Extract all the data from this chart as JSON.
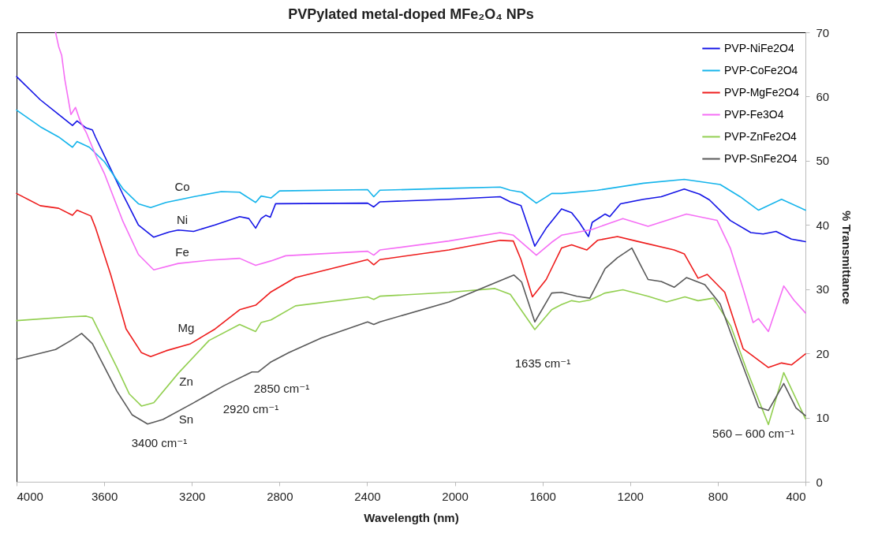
{
  "chart_data": {
    "type": "line",
    "title": "PVPylated metal-doped MFe₂O₄ NPs",
    "xlabel": "Wavelength (nm)",
    "ylabel": "% Transmittance",
    "xlim": [
      4000,
      400
    ],
    "xticks": [
      4000,
      3600,
      3200,
      2800,
      2400,
      2000,
      1600,
      1200,
      800,
      400
    ],
    "ylim": [
      0,
      70
    ],
    "yticks": [
      0,
      10,
      20,
      30,
      40,
      50,
      60,
      70
    ],
    "legend": "top right",
    "marker": "none",
    "line_style": "solid",
    "series": [
      {
        "name": "PVP-NiFe2O4",
        "color": "#1414e6",
        "x": [
          4000,
          3892,
          3808,
          3745,
          3724,
          3682,
          3654,
          3640,
          3598,
          3514,
          3444,
          3374,
          3304,
          3262,
          3192,
          3094,
          2982,
          2940,
          2909,
          2884,
          2863,
          2842,
          2818,
          2398,
          2370,
          2342,
          2027,
          1793,
          1747,
          1698,
          1635,
          1583,
          1513,
          1467,
          1432,
          1390,
          1373,
          1314,
          1293,
          1244,
          1139,
          1058,
          953,
          883,
          838,
          743,
          649,
          593,
          534,
          464,
          400
        ],
        "values": [
          63.1,
          59.5,
          57.2,
          55.5,
          56.2,
          55.1,
          54.8,
          53.7,
          50.7,
          44.7,
          40.0,
          38.1,
          38.9,
          39.2,
          39.0,
          40.0,
          41.3,
          41.0,
          39.5,
          41.0,
          41.5,
          41.2,
          43.3,
          43.4,
          42.8,
          43.6,
          44.0,
          44.4,
          43.6,
          43.0,
          36.7,
          39.5,
          42.5,
          41.9,
          40.4,
          38.2,
          40.4,
          41.7,
          41.3,
          43.3,
          44.0,
          44.4,
          45.6,
          44.8,
          43.9,
          40.7,
          38.8,
          38.6,
          39.0,
          37.8,
          37.4
        ]
      },
      {
        "name": "PVP-CoFe2O4",
        "color": "#14b4eb",
        "x": [
          4000,
          3892,
          3808,
          3745,
          3724,
          3668,
          3598,
          3514,
          3444,
          3388,
          3318,
          3192,
          3066,
          2982,
          2909,
          2884,
          2839,
          2800,
          2398,
          2370,
          2342,
          2027,
          1793,
          1747,
          1695,
          1628,
          1558,
          1513,
          1349,
          1139,
          953,
          789,
          698,
          614,
          509,
          400
        ],
        "values": [
          57.9,
          55.3,
          53.7,
          52.1,
          53.0,
          52.1,
          49.8,
          45.6,
          43.3,
          42.7,
          43.5,
          44.4,
          45.2,
          45.1,
          43.5,
          44.5,
          44.2,
          45.3,
          45.5,
          44.4,
          45.4,
          45.7,
          45.9,
          45.4,
          45.1,
          43.4,
          44.9,
          44.9,
          45.4,
          46.5,
          47.1,
          46.3,
          44.4,
          42.3,
          44.0,
          42.3
        ]
      },
      {
        "name": "PVP-MgFe2O4",
        "color": "#ee1c1c",
        "x": [
          4000,
          3892,
          3808,
          3745,
          3724,
          3661,
          3640,
          3570,
          3500,
          3430,
          3388,
          3318,
          3206,
          3094,
          2982,
          2909,
          2842,
          2727,
          2398,
          2370,
          2342,
          2027,
          1793,
          1733,
          1698,
          1646,
          1583,
          1513,
          1467,
          1398,
          1349,
          1258,
          1174,
          999,
          953,
          890,
          848,
          768,
          684,
          569,
          509,
          464,
          400
        ],
        "values": [
          44.9,
          43.0,
          42.6,
          41.5,
          42.3,
          41.4,
          39.6,
          32.2,
          23.8,
          20.1,
          19.5,
          20.4,
          21.5,
          23.8,
          26.8,
          27.5,
          29.5,
          31.8,
          34.6,
          33.8,
          34.6,
          36.1,
          37.6,
          37.5,
          34.6,
          28.8,
          31.5,
          36.4,
          36.9,
          36.1,
          37.6,
          38.2,
          37.5,
          36.1,
          35.5,
          31.7,
          32.3,
          29.5,
          20.7,
          17.8,
          18.5,
          18.2,
          19.9
        ]
      },
      {
        "name": "PVP-Fe3O4",
        "color": "#f56ef5",
        "x": [
          3822,
          3808,
          3794,
          3780,
          3752,
          3731,
          3710,
          3682,
          3654,
          3633,
          3598,
          3514,
          3444,
          3374,
          3262,
          3122,
          2982,
          2909,
          2839,
          2772,
          2398,
          2370,
          2342,
          2027,
          1793,
          1733,
          1628,
          1558,
          1513,
          1373,
          1233,
          1118,
          943,
          803,
          743,
          684,
          639,
          614,
          569,
          499,
          453,
          400
        ],
        "values": [
          70,
          67.8,
          66.4,
          62.7,
          57.2,
          58.3,
          56.2,
          54.4,
          52.1,
          50.4,
          47.9,
          40.5,
          35.4,
          33.0,
          34.0,
          34.5,
          34.8,
          33.7,
          34.4,
          35.2,
          35.9,
          35.3,
          36.1,
          37.5,
          38.8,
          38.4,
          35.3,
          37.3,
          38.4,
          39.3,
          41.0,
          39.8,
          41.7,
          40.7,
          36.4,
          30.0,
          24.8,
          25.4,
          23.4,
          30.5,
          28.3,
          26.3
        ]
      },
      {
        "name": "PVP-ZnFe2O4",
        "color": "#92cf50",
        "x": [
          4000,
          3752,
          3682,
          3654,
          3542,
          3486,
          3430,
          3374,
          3262,
          3122,
          2982,
          2909,
          2884,
          2839,
          2727,
          2398,
          2370,
          2342,
          2027,
          1817,
          1747,
          1635,
          1558,
          1513,
          1467,
          1432,
          1384,
          1314,
          1233,
          1118,
          1034,
          950,
          890,
          820,
          740,
          670,
          569,
          499,
          400
        ],
        "values": [
          25.1,
          25.7,
          25.8,
          25.5,
          17.8,
          13.7,
          11.8,
          12.3,
          16.9,
          22.0,
          24.5,
          23.4,
          24.8,
          25.2,
          27.4,
          28.8,
          28.4,
          28.9,
          29.5,
          30.1,
          29.2,
          23.7,
          26.8,
          27.6,
          28.2,
          28.0,
          28.3,
          29.4,
          29.9,
          28.9,
          28.0,
          28.8,
          28.2,
          28.6,
          24.2,
          17.6,
          8.9,
          17.0,
          9.8
        ]
      },
      {
        "name": "PVP-SnFe2O4",
        "color": "#595959",
        "x": [
          4000,
          3822,
          3752,
          3703,
          3654,
          3542,
          3472,
          3402,
          3332,
          3192,
          3052,
          2926,
          2898,
          2842,
          2758,
          2608,
          2398,
          2370,
          2342,
          2027,
          1852,
          1730,
          1695,
          1635,
          1558,
          1513,
          1443,
          1384,
          1314,
          1258,
          1192,
          1153,
          1118,
          1058,
          999,
          943,
          859,
          789,
          719,
          614,
          569,
          499,
          443,
          400
        ],
        "values": [
          19.1,
          20.6,
          22.0,
          23.1,
          21.5,
          14.1,
          10.4,
          9.0,
          9.7,
          12.3,
          15.0,
          17.1,
          17.1,
          18.6,
          20.1,
          22.4,
          24.9,
          24.5,
          24.9,
          28.0,
          30.5,
          32.2,
          31.1,
          24.9,
          29.4,
          29.5,
          28.9,
          28.6,
          33.2,
          34.9,
          36.4,
          33.8,
          31.5,
          31.2,
          30.3,
          31.8,
          30.7,
          27.7,
          21.1,
          11.6,
          11.1,
          15.3,
          11.5,
          10.3
        ]
      }
    ],
    "annotations": [
      "Co",
      "Ni",
      "Fe",
      "Mg",
      "Zn",
      "Sn",
      "3400 cm⁻¹",
      "2920 cm⁻¹",
      "2850 cm⁻¹",
      "1635 cm⁻¹",
      "560 – 600 cm⁻¹"
    ]
  }
}
